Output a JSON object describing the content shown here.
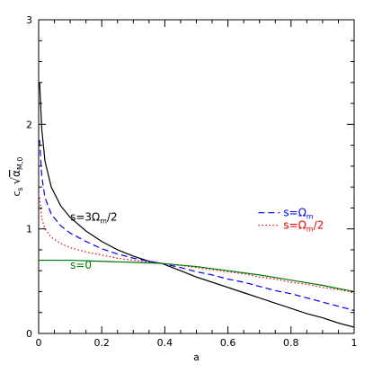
{
  "chart_data": {
    "type": "line",
    "xlabel": "a",
    "ylabel": "c_s √α_M,0",
    "xlim": [
      0,
      1
    ],
    "ylim": [
      0,
      3
    ],
    "x_ticks": [
      0,
      0.2,
      0.4,
      0.6,
      0.8,
      1
    ],
    "x_tick_labels": [
      "0",
      "0.2",
      "0.4",
      "0.6",
      "0.8",
      "1"
    ],
    "y_ticks": [
      0,
      1,
      2,
      3
    ],
    "y_tick_labels": [
      "0",
      "1",
      "2",
      "3"
    ],
    "grid": false,
    "series": [
      {
        "name": "s=3Ω_m/2",
        "color": "#000000",
        "dash": "solid",
        "x": [
          0.003,
          0.01,
          0.02,
          0.04,
          0.07,
          0.1,
          0.15,
          0.2,
          0.25,
          0.3,
          0.35,
          0.39,
          0.45,
          0.5,
          0.55,
          0.6,
          0.65,
          0.7,
          0.75,
          0.8,
          0.85,
          0.9,
          0.95,
          1.0
        ],
        "y": [
          2.4,
          1.95,
          1.65,
          1.4,
          1.22,
          1.11,
          0.98,
          0.88,
          0.8,
          0.74,
          0.69,
          0.67,
          0.6,
          0.54,
          0.49,
          0.44,
          0.39,
          0.34,
          0.29,
          0.24,
          0.19,
          0.15,
          0.1,
          0.06
        ]
      },
      {
        "name": "s=Ω_m",
        "color": "#0000ee",
        "dash": "dashed",
        "x": [
          0.003,
          0.01,
          0.02,
          0.04,
          0.07,
          0.1,
          0.15,
          0.2,
          0.25,
          0.3,
          0.35,
          0.39,
          0.45,
          0.5,
          0.55,
          0.6,
          0.65,
          0.7,
          0.75,
          0.8,
          0.85,
          0.9,
          0.95,
          1.0
        ],
        "y": [
          1.85,
          1.5,
          1.3,
          1.14,
          1.03,
          0.96,
          0.88,
          0.81,
          0.76,
          0.72,
          0.69,
          0.67,
          0.63,
          0.59,
          0.56,
          0.52,
          0.49,
          0.45,
          0.41,
          0.38,
          0.34,
          0.3,
          0.26,
          0.22
        ]
      },
      {
        "name": "s=Ω_m/2",
        "color": "#ee0000",
        "dash": "dotted",
        "x": [
          0.003,
          0.01,
          0.02,
          0.04,
          0.07,
          0.1,
          0.15,
          0.2,
          0.25,
          0.3,
          0.35,
          0.39,
          0.45,
          0.5,
          0.55,
          0.6,
          0.65,
          0.7,
          0.75,
          0.8,
          0.85,
          0.9,
          0.95,
          1.0
        ],
        "y": [
          1.3,
          1.1,
          1.0,
          0.92,
          0.86,
          0.82,
          0.78,
          0.75,
          0.72,
          0.7,
          0.68,
          0.67,
          0.65,
          0.63,
          0.61,
          0.59,
          0.57,
          0.54,
          0.52,
          0.49,
          0.47,
          0.44,
          0.42,
          0.39
        ]
      },
      {
        "name": "s=0",
        "color": "#007700",
        "dash": "solid",
        "x": [
          0.0,
          0.1,
          0.2,
          0.3,
          0.39,
          0.5,
          0.6,
          0.7,
          0.8,
          0.9,
          1.0
        ],
        "y": [
          0.7,
          0.7,
          0.69,
          0.68,
          0.67,
          0.64,
          0.6,
          0.56,
          0.51,
          0.46,
          0.4
        ]
      }
    ],
    "annotations": [
      {
        "id": "ann-s3",
        "text": "s=3Ω",
        "sub": "m",
        "tail": "/2",
        "x": 0.1,
        "y": 1.08,
        "color": "#000000"
      },
      {
        "id": "ann-s1",
        "text": "s=Ω",
        "sub": "m",
        "tail": "",
        "x": 0.93,
        "y": 1.12,
        "color": "#0000ee",
        "legend_line": true
      },
      {
        "id": "ann-sh",
        "text": "s=Ω",
        "sub": "m",
        "tail": "/2",
        "x": 0.93,
        "y": 1.0,
        "color": "#ee0000",
        "legend_line": true
      },
      {
        "id": "ann-s0",
        "text": "s=0",
        "sub": "",
        "tail": "",
        "x": 0.1,
        "y": 0.62,
        "color": "#007700"
      }
    ]
  }
}
